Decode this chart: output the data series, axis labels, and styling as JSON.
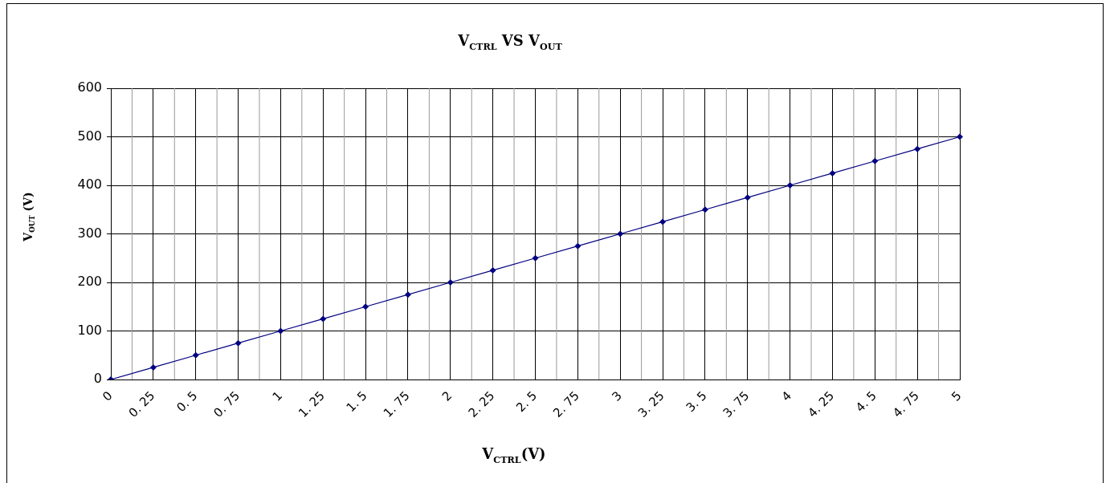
{
  "chart_data": {
    "type": "line",
    "title": "V$_{CTRL}$ VS V$_{OUT}$",
    "xlabel": "V$_{CTRL}$(V)",
    "ylabel": "V$_{OUT}$ (V)",
    "categories": [
      "0",
      "0. 25",
      "0. 5",
      "0. 75",
      "1",
      "1. 25",
      "1. 5",
      "1. 75",
      "2",
      "2. 25",
      "2. 5",
      "2. 75",
      "3",
      "3. 25",
      "3. 5",
      "3. 75",
      "4",
      "4. 25",
      "4. 5",
      "4. 75",
      "5"
    ],
    "series": [
      {
        "color": "#000080",
        "values": [
          0,
          25,
          50,
          75,
          100,
          125,
          150,
          175,
          200,
          225,
          250,
          275,
          300,
          325,
          350,
          375,
          400,
          425,
          450,
          475,
          500
        ]
      }
    ],
    "ylim": [
      0,
      600
    ],
    "yticks": [
      0,
      100,
      200,
      300,
      400,
      500,
      600
    ],
    "grid": true,
    "legend": false,
    "marker": "diamond",
    "line_style": "solid"
  }
}
